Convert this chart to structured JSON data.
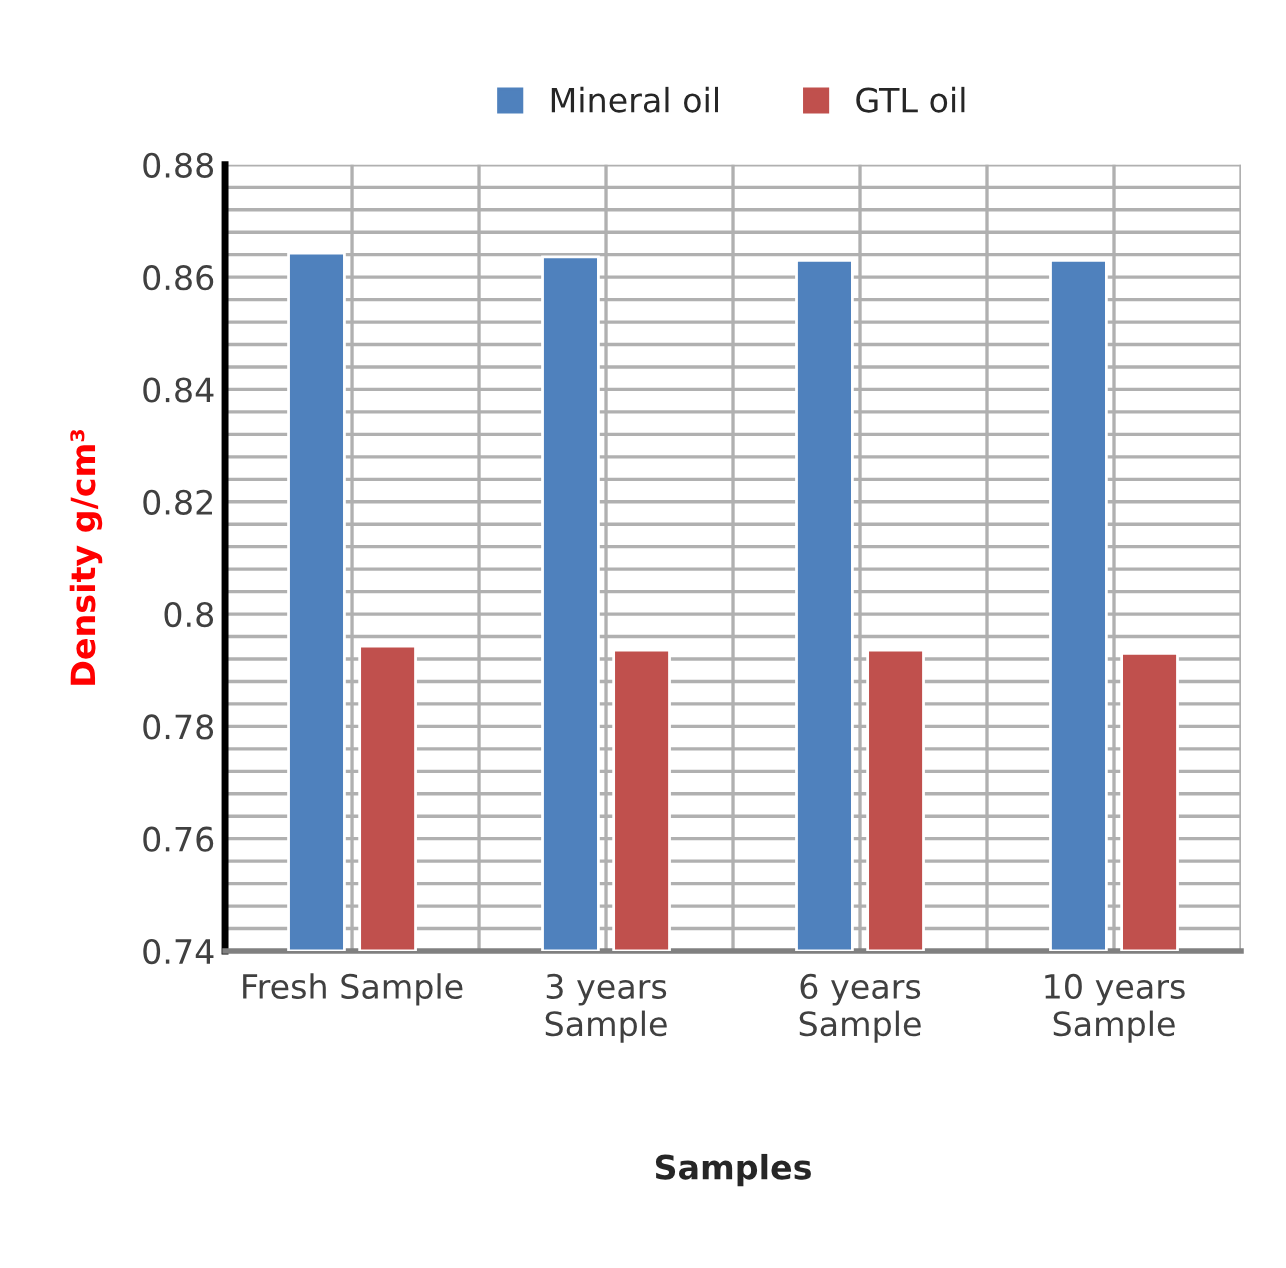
{
  "chart_data": {
    "type": "bar",
    "xlabel": "Samples",
    "ylabel": "Density g/cm³",
    "categories": [
      "Fresh Sample",
      "3 years\nSample",
      "6 years\nSample",
      "10 years\nSample"
    ],
    "series": [
      {
        "name": "Mineral oil",
        "color": "#4f81bd",
        "values": [
          0.8643,
          0.8636,
          0.863,
          0.863
        ]
      },
      {
        "name": "GTL oil",
        "color": "#c0504d",
        "values": [
          0.7943,
          0.7936,
          0.7936,
          0.793
        ]
      }
    ],
    "ylim": [
      0.74,
      0.88
    ],
    "yticks": [
      0.74,
      0.76,
      0.78,
      {
        "value": 0.8,
        "label": "0.8"
      },
      0.82,
      0.84,
      0.86,
      0.88
    ],
    "grid": true,
    "legend": "top"
  }
}
